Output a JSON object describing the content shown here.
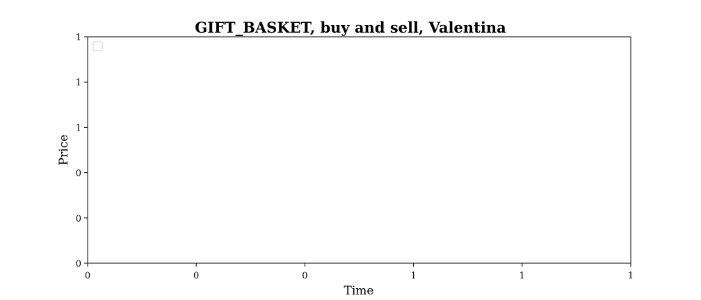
{
  "chart_data": {
    "type": "line",
    "title": "GIFT_BASKET, buy and sell, Valentina",
    "xlabel": "Time",
    "ylabel": "Price",
    "x_tick_labels": [
      "0",
      "0",
      "0",
      "1",
      "1",
      "1"
    ],
    "y_tick_labels": [
      "0",
      "0",
      "0",
      "1",
      "1",
      "1"
    ],
    "series": [],
    "grid": false,
    "legend": "top-left"
  }
}
